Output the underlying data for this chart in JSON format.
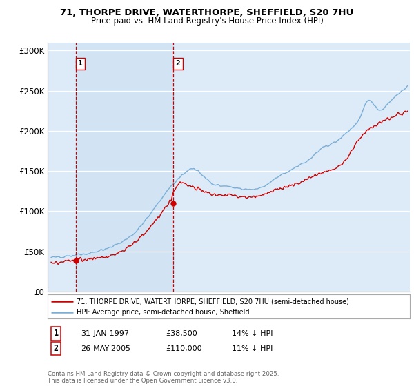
{
  "title": "71, THORPE DRIVE, WATERTHORPE, SHEFFIELD, S20 7HU",
  "subtitle": "Price paid vs. HM Land Registry's House Price Index (HPI)",
  "ylabel_ticks": [
    "£0",
    "£50K",
    "£100K",
    "£150K",
    "£200K",
    "£250K",
    "£300K"
  ],
  "ylim": [
    0,
    310000
  ],
  "xlim_start": 1994.7,
  "xlim_end": 2025.5,
  "bg_color": "#ddeaf7",
  "grid_color": "#ffffff",
  "sale1_x": 1997.08,
  "sale1_y": 38500,
  "sale1_label": "1",
  "sale1_date": "31-JAN-1997",
  "sale1_price": "£38,500",
  "sale1_hpi": "14% ↓ HPI",
  "sale2_x": 2005.4,
  "sale2_y": 110000,
  "sale2_label": "2",
  "sale2_date": "26-MAY-2005",
  "sale2_price": "£110,000",
  "sale2_hpi": "11% ↓ HPI",
  "line_color_red": "#cc0000",
  "line_color_blue": "#7aaed6",
  "legend_label_red": "71, THORPE DRIVE, WATERTHORPE, SHEFFIELD, S20 7HU (semi-detached house)",
  "legend_label_blue": "HPI: Average price, semi-detached house, Sheffield",
  "footer_line1": "Contains HM Land Registry data © Crown copyright and database right 2025.",
  "footer_line2": "This data is licensed under the Open Government Licence v3.0."
}
